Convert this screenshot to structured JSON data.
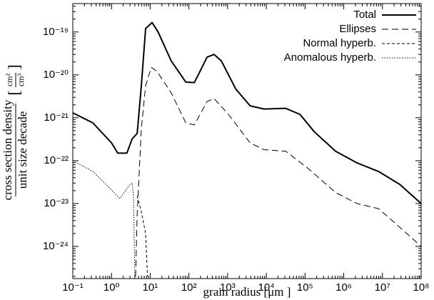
{
  "chart_data": {
    "type": "line",
    "xlabel": "grain radius [μm ]",
    "ylabel": {
      "numerator": "cross section density",
      "denominator": "unit size decade",
      "unit_numerator": "cm²",
      "unit_denominator": "cm³"
    },
    "xscale": "log",
    "yscale": "log",
    "xlim": [
      0.1,
      100000000
    ],
    "ylim": [
      1.78e-25,
      4.6e-19
    ],
    "xticks": [
      {
        "value": 0.1,
        "label": "10⁻¹"
      },
      {
        "value": 1,
        "label": "10⁰"
      },
      {
        "value": 10,
        "label": "10¹"
      },
      {
        "value": 100,
        "label": "10²"
      },
      {
        "value": 1000,
        "label": "10³"
      },
      {
        "value": 10000,
        "label": "10⁴"
      },
      {
        "value": 100000,
        "label": "10⁵"
      },
      {
        "value": 1000000,
        "label": "10⁶"
      },
      {
        "value": 10000000,
        "label": "10⁷"
      },
      {
        "value": 100000000,
        "label": "10⁸"
      }
    ],
    "yticks": [
      {
        "value": 1e-24,
        "label": "10⁻²⁴"
      },
      {
        "value": 1e-23,
        "label": "10⁻²³"
      },
      {
        "value": 1e-22,
        "label": "10⁻²²"
      },
      {
        "value": 1e-21,
        "label": "10⁻²¹"
      },
      {
        "value": 1e-20,
        "label": "10⁻²⁰"
      },
      {
        "value": 1e-19,
        "label": "10⁻¹⁹"
      }
    ],
    "legend": "upper right",
    "series": [
      {
        "name": "Total",
        "color": "#000000",
        "style": "solid",
        "x": [
          0.1,
          0.33,
          1.0,
          1.45,
          2.5,
          3.4,
          4.6,
          5.9,
          7.6,
          11.2,
          16,
          35,
          83,
          138,
          295,
          447,
          692,
          1620,
          3800,
          8700,
          31600,
          74000,
          174000,
          617000,
          2190000,
          7900000,
          28000000,
          100000000
        ],
        "values": [
          1.3e-21,
          7.6e-22,
          2.6e-22,
          1.5e-22,
          1.5e-22,
          3.2e-22,
          4.3e-22,
          5.6e-21,
          1.2e-19,
          1.66e-19,
          1e-19,
          2.1e-20,
          6.8e-21,
          6.6e-21,
          2.6e-20,
          3e-20,
          2.1e-20,
          4.7e-21,
          1.9e-21,
          1.6e-21,
          1.66e-21,
          1.2e-21,
          4.7e-22,
          1.66e-22,
          8.9e-23,
          5.6e-23,
          2.8e-23,
          1e-23
        ]
      },
      {
        "name": "Ellipses",
        "color": "#000000",
        "style": "dashed",
        "x": [
          4.2,
          4.6,
          5.9,
          7.6,
          10.7,
          15,
          35,
          83,
          138,
          295,
          447,
          1050,
          3800,
          8700,
          31600,
          115000,
          620000,
          2200000,
          7900000,
          28000000,
          100000000
        ],
        "values": [
          2e-25,
          5.6e-24,
          5.6e-22,
          5.6e-21,
          1.5e-20,
          1.2e-20,
          3.8e-21,
          7.6e-22,
          6.8e-22,
          2.4e-21,
          2.8e-21,
          1.2e-21,
          2.6e-22,
          1.8e-22,
          1.66e-22,
          6.8e-23,
          1.8e-23,
          1e-23,
          7.6e-24,
          2.8e-24,
          1e-24
        ]
      },
      {
        "name": "Normal hyperb.",
        "color": "#000000",
        "style": "short-dashed",
        "x": [
          4.6,
          6.0,
          7.6,
          8.5
        ],
        "values": [
          1.5e-23,
          6e-24,
          2e-24,
          2e-25
        ]
      },
      {
        "name": "Anomalous hyperb.",
        "color": "#000000",
        "style": "dotted",
        "x": [
          0.1,
          0.33,
          0.78,
          1.65,
          2.8,
          3.4,
          3.7,
          4.0
        ],
        "values": [
          1e-22,
          5.6e-23,
          2.6e-23,
          1.3e-23,
          2.6e-23,
          3e-23,
          1.5e-23,
          2e-25
        ]
      }
    ]
  }
}
